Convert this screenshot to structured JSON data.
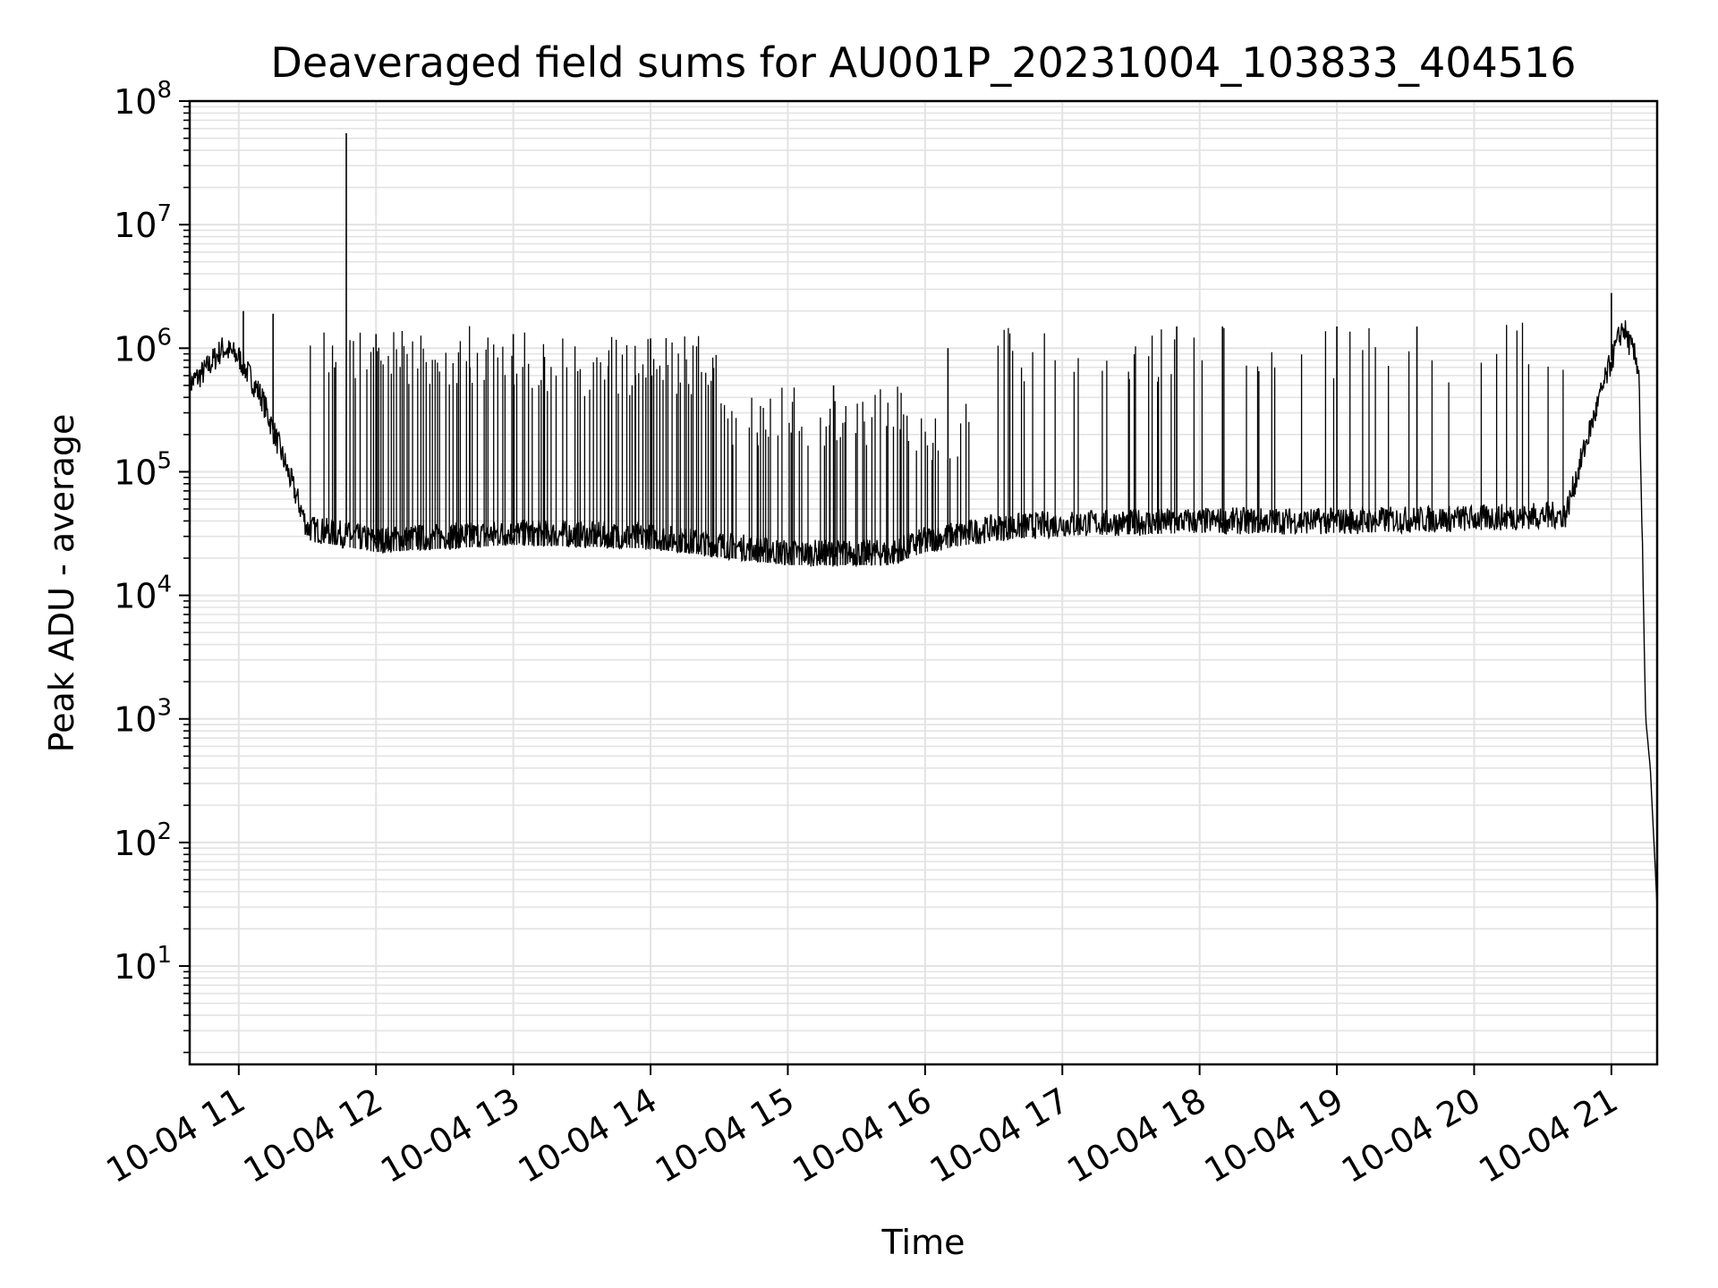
{
  "chart_data": {
    "type": "line",
    "title": "Deaveraged field sums for AU001P_20231004_103833_404516",
    "xlabel": "Time",
    "ylabel": "Peak ADU - average",
    "yscale": "log",
    "ylim": [
      1.6,
      100000000
    ],
    "xlim": [
      "2023-10-04 10:38:33",
      "2023-10-04 21:20:00"
    ],
    "grid": "both",
    "line_color": "#000000",
    "y_ticks": [
      {
        "value": 10,
        "base": "10",
        "exp": "1"
      },
      {
        "value": 100,
        "base": "10",
        "exp": "2"
      },
      {
        "value": 1000,
        "base": "10",
        "exp": "3"
      },
      {
        "value": 10000,
        "base": "10",
        "exp": "4"
      },
      {
        "value": 100000,
        "base": "10",
        "exp": "5"
      },
      {
        "value": 1000000,
        "base": "10",
        "exp": "6"
      },
      {
        "value": 10000000,
        "base": "10",
        "exp": "7"
      },
      {
        "value": 100000000,
        "base": "10",
        "exp": "8"
      }
    ],
    "x_ticks": [
      {
        "value": "2023-10-04 11:00",
        "label": "10-04 11"
      },
      {
        "value": "2023-10-04 12:00",
        "label": "10-04 12"
      },
      {
        "value": "2023-10-04 13:00",
        "label": "10-04 13"
      },
      {
        "value": "2023-10-04 14:00",
        "label": "10-04 14"
      },
      {
        "value": "2023-10-04 15:00",
        "label": "10-04 15"
      },
      {
        "value": "2023-10-04 16:00",
        "label": "10-04 16"
      },
      {
        "value": "2023-10-04 17:00",
        "label": "10-04 17"
      },
      {
        "value": "2023-10-04 18:00",
        "label": "10-04 18"
      },
      {
        "value": "2023-10-04 19:00",
        "label": "10-04 19"
      },
      {
        "value": "2023-10-04 20:00",
        "label": "10-04 20"
      },
      {
        "value": "2023-10-04 21:00",
        "label": "10-04 21"
      }
    ],
    "series": [
      {
        "baseline": [
          [
            "2023-10-04 10:38",
            500000
          ],
          [
            "2023-10-04 10:45",
            650000
          ],
          [
            "2023-10-04 10:53",
            1000000
          ],
          [
            "2023-10-04 11:00",
            850000
          ],
          [
            "2023-10-04 11:10",
            400000
          ],
          [
            "2023-10-04 11:20",
            120000
          ],
          [
            "2023-10-04 11:30",
            35000
          ],
          [
            "2023-10-04 12:00",
            28000
          ],
          [
            "2023-10-04 13:00",
            32000
          ],
          [
            "2023-10-04 14:00",
            30000
          ],
          [
            "2023-10-04 15:00",
            22000
          ],
          [
            "2023-10-04 15:45",
            22000
          ],
          [
            "2023-10-04 16:00",
            28000
          ],
          [
            "2023-10-04 16:30",
            35000
          ],
          [
            "2023-10-04 17:00",
            38000
          ],
          [
            "2023-10-04 18:00",
            40000
          ],
          [
            "2023-10-04 19:00",
            40000
          ],
          [
            "2023-10-04 20:00",
            42000
          ],
          [
            "2023-10-04 20:40",
            45000
          ],
          [
            "2023-10-04 20:50",
            200000
          ],
          [
            "2023-10-04 21:00",
            800000
          ],
          [
            "2023-10-04 21:05",
            1500000
          ],
          [
            "2023-10-04 21:12",
            700000
          ],
          [
            "2023-10-04 21:15",
            1000
          ],
          [
            "2023-10-04 21:17",
            400
          ],
          [
            "2023-10-04 21:20",
            30
          ]
        ],
        "spikes": [
          [
            "2023-10-04 11:47",
            55000000
          ],
          [
            "2023-10-04 11:02",
            2000000
          ],
          [
            "2023-10-04 11:15",
            1900000
          ],
          [
            "2023-10-04 12:00",
            1300000
          ],
          [
            "2023-10-04 13:00",
            1300000
          ],
          [
            "2023-10-04 14:00",
            1200000
          ],
          [
            "2023-10-04 15:20",
            500000
          ],
          [
            "2023-10-04 16:10",
            1000000
          ],
          [
            "2023-10-04 17:50",
            1500000
          ],
          [
            "2023-10-04 18:10",
            1500000
          ],
          [
            "2023-10-04 19:00",
            1500000
          ],
          [
            "2023-10-04 19:35",
            1500000
          ],
          [
            "2023-10-04 21:00",
            2800000
          ]
        ]
      }
    ]
  }
}
